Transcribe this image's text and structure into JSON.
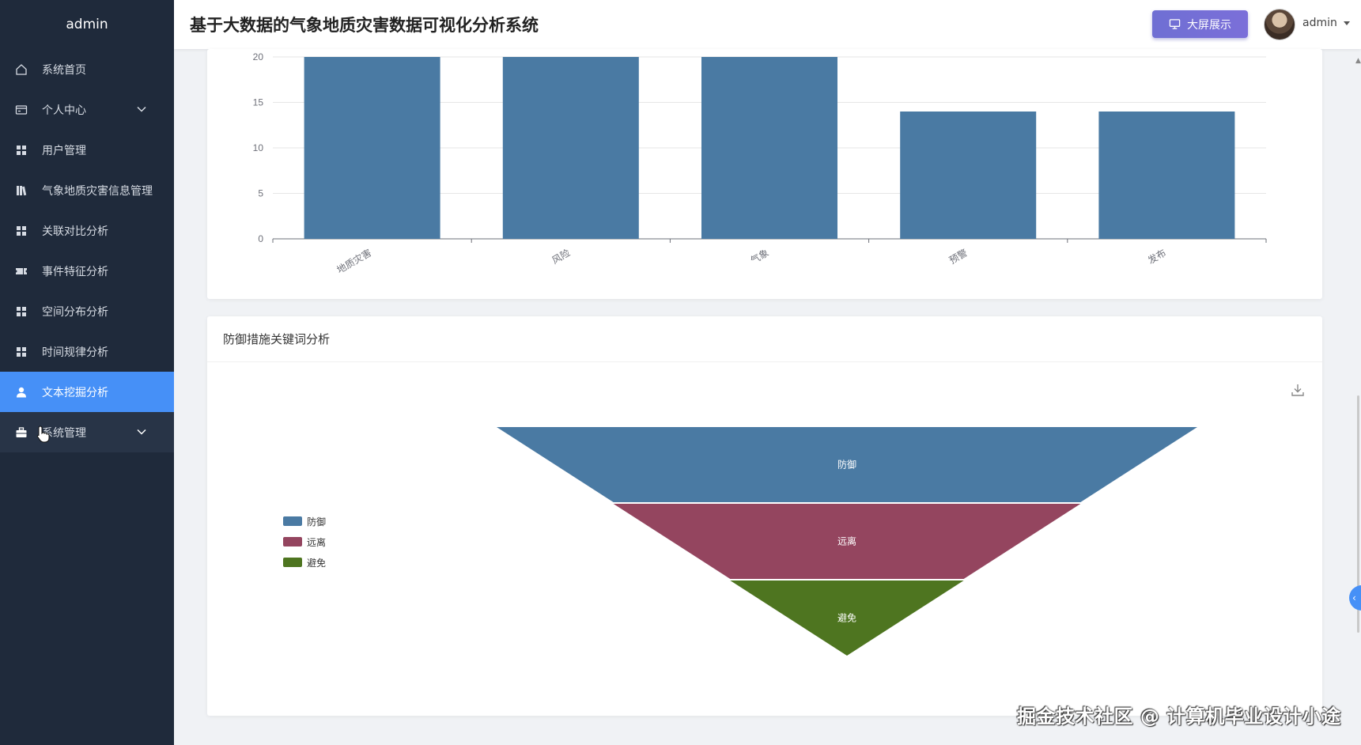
{
  "sidebar": {
    "brand": "admin",
    "items": [
      {
        "label": "系统首页",
        "icon": "home-icon"
      },
      {
        "label": "个人中心",
        "icon": "wallet-icon",
        "expandable": true
      },
      {
        "label": "用户管理",
        "icon": "grid-icon"
      },
      {
        "label": "气象地质灾害信息管理",
        "icon": "books-icon"
      },
      {
        "label": "关联对比分析",
        "icon": "grid-icon"
      },
      {
        "label": "事件特征分析",
        "icon": "ticket-icon"
      },
      {
        "label": "空间分布分析",
        "icon": "grid-icon"
      },
      {
        "label": "时间规律分析",
        "icon": "grid-icon"
      },
      {
        "label": "文本挖掘分析",
        "icon": "user-icon",
        "active": true
      },
      {
        "label": "系统管理",
        "icon": "briefcase-icon",
        "expandable": true
      }
    ]
  },
  "header": {
    "title": "基于大数据的气象地质灾害数据可视化分析系统",
    "screen_button": "大屏展示",
    "user": "admin"
  },
  "colors": {
    "sidebar_bg": "#1f2a3b",
    "active": "#4690f7",
    "bar": "#4a7aa3"
  },
  "chart_data": [
    {
      "type": "bar",
      "categories": [
        "地质灾害",
        "风险",
        "气象",
        "预警",
        "发布"
      ],
      "values": [
        20,
        20,
        20,
        14,
        14
      ],
      "ylim": [
        0,
        20
      ],
      "yticks": [
        0,
        5,
        10,
        15,
        20
      ],
      "note_visible_range": "partially scrolled; top tick cut off"
    },
    {
      "type": "funnel",
      "title": "防御措施关键词分析",
      "categories": [
        "防御",
        "远离",
        "避免"
      ],
      "values": [
        3,
        2,
        1
      ],
      "colors": [
        "#4a7aa3",
        "#94455f",
        "#4e7520"
      ],
      "legend": [
        "防御",
        "远离",
        "避免"
      ],
      "legend_position": "left"
    }
  ],
  "watermark": "掘金技术社区 @ 计算机毕业设计小途"
}
